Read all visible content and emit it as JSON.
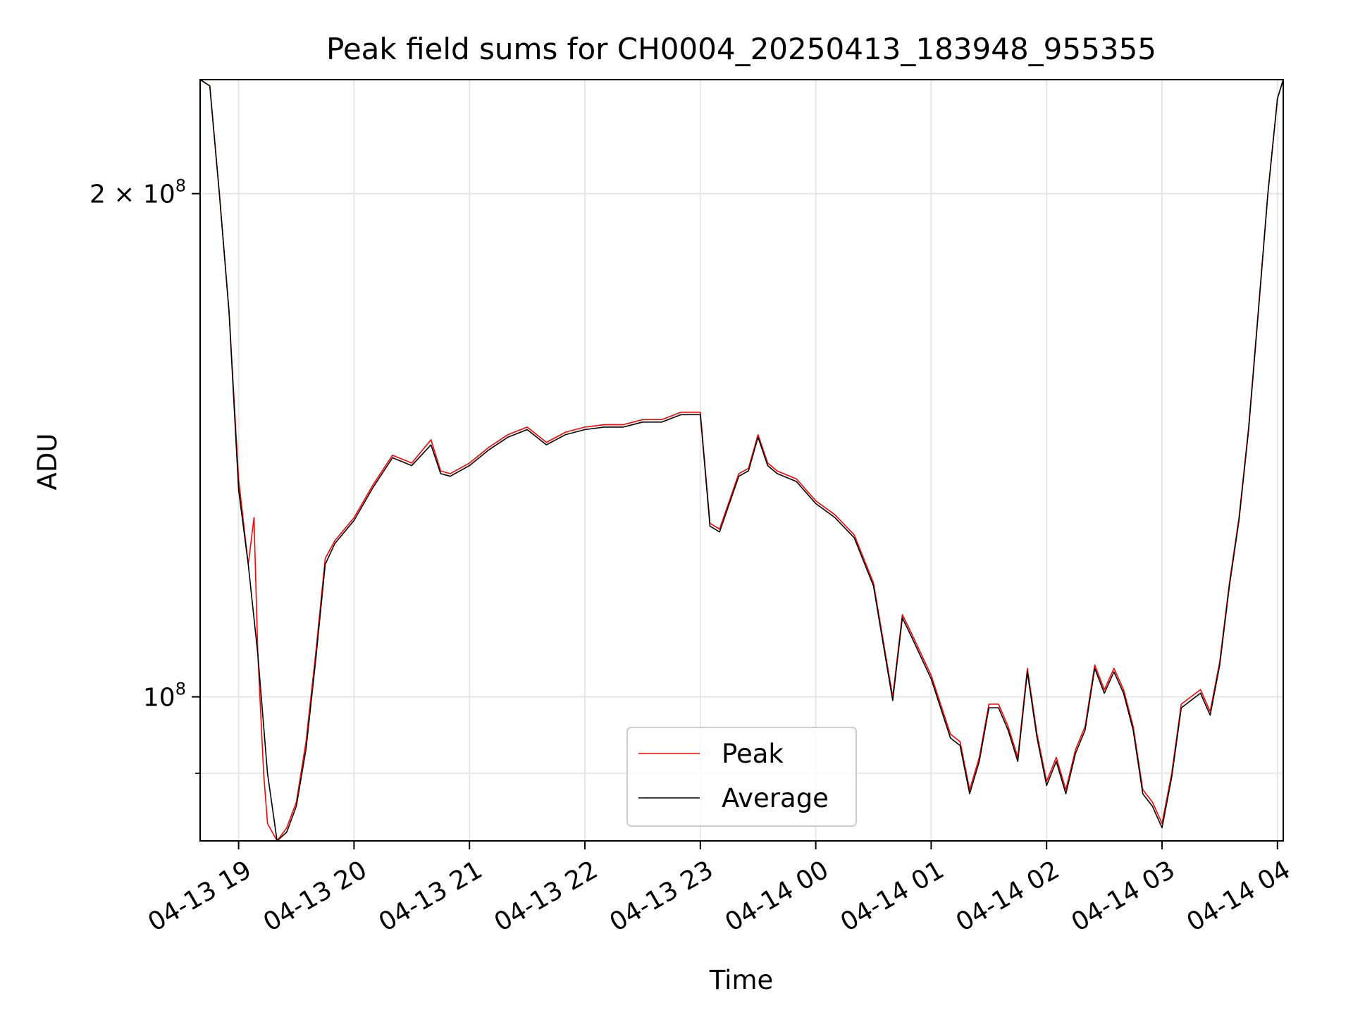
{
  "chart_data": {
    "type": "line",
    "title": "Peak field sums for CH0004_20250413_183948_955355",
    "xlabel": "Time",
    "ylabel": "ADU",
    "yscale": "log",
    "xlim": [
      "2025-04-13 18:40",
      "2025-04-14 04:03"
    ],
    "ylim": [
      82000000,
      234000000
    ],
    "x_ticks": [
      "04-13 19",
      "04-13 20",
      "04-13 21",
      "04-13 22",
      "04-13 23",
      "04-14 00",
      "04-14 01",
      "04-14 02",
      "04-14 03",
      "04-14 04"
    ],
    "y_tick_labels": [
      {
        "value": 200000000,
        "label": "2 × 10",
        "sup": "8"
      },
      {
        "value": 100000000,
        "label": "10",
        "sup": "8"
      }
    ],
    "y_minor_ticks": [
      90000000
    ],
    "grid": true,
    "legend": {
      "position": "bottom-center",
      "entries": [
        "Peak",
        "Average"
      ]
    },
    "series": [
      {
        "name": "Peak",
        "color": "#ff0000",
        "x": [
          "2025-04-13 18:40",
          "2025-04-13 18:45",
          "2025-04-13 18:50",
          "2025-04-13 18:55",
          "2025-04-13 19:00",
          "2025-04-13 19:05",
          "2025-04-13 19:08",
          "2025-04-13 19:10",
          "2025-04-13 19:13",
          "2025-04-13 19:15",
          "2025-04-13 19:20",
          "2025-04-13 19:25",
          "2025-04-13 19:30",
          "2025-04-13 19:35",
          "2025-04-13 19:40",
          "2025-04-13 19:45",
          "2025-04-13 19:50",
          "2025-04-13 20:00",
          "2025-04-13 20:10",
          "2025-04-13 20:20",
          "2025-04-13 20:30",
          "2025-04-13 20:40",
          "2025-04-13 20:45",
          "2025-04-13 20:50",
          "2025-04-13 21:00",
          "2025-04-13 21:10",
          "2025-04-13 21:20",
          "2025-04-13 21:30",
          "2025-04-13 21:40",
          "2025-04-13 21:50",
          "2025-04-13 22:00",
          "2025-04-13 22:10",
          "2025-04-13 22:20",
          "2025-04-13 22:30",
          "2025-04-13 22:40",
          "2025-04-13 22:50",
          "2025-04-13 23:00",
          "2025-04-13 23:05",
          "2025-04-13 23:10",
          "2025-04-13 23:20",
          "2025-04-13 23:25",
          "2025-04-13 23:30",
          "2025-04-13 23:35",
          "2025-04-13 23:40",
          "2025-04-13 23:50",
          "2025-04-14 00:00",
          "2025-04-14 00:10",
          "2025-04-14 00:20",
          "2025-04-14 00:30",
          "2025-04-14 00:40",
          "2025-04-14 00:45",
          "2025-04-14 00:50",
          "2025-04-14 01:00",
          "2025-04-14 01:10",
          "2025-04-14 01:15",
          "2025-04-14 01:20",
          "2025-04-14 01:25",
          "2025-04-14 01:30",
          "2025-04-14 01:35",
          "2025-04-14 01:40",
          "2025-04-14 01:45",
          "2025-04-14 01:50",
          "2025-04-14 01:55",
          "2025-04-14 02:00",
          "2025-04-14 02:05",
          "2025-04-14 02:10",
          "2025-04-14 02:15",
          "2025-04-14 02:20",
          "2025-04-14 02:25",
          "2025-04-14 02:30",
          "2025-04-14 02:35",
          "2025-04-14 02:40",
          "2025-04-14 02:45",
          "2025-04-14 02:50",
          "2025-04-14 02:55",
          "2025-04-14 03:00",
          "2025-04-14 03:05",
          "2025-04-14 03:10",
          "2025-04-14 03:15",
          "2025-04-14 03:20",
          "2025-04-14 03:25",
          "2025-04-14 03:30",
          "2025-04-14 03:35",
          "2025-04-14 03:40",
          "2025-04-14 03:45",
          "2025-04-14 03:50",
          "2025-04-14 03:55",
          "2025-04-14 04:00",
          "2025-04-14 04:03"
        ],
        "y": [
          234000000,
          232000000,
          200000000,
          170000000,
          135000000,
          120000000,
          128000000,
          106000000,
          90000000,
          84000000,
          82000000,
          83500000,
          86500000,
          94000000,
          106000000,
          121000000,
          124000000,
          128000000,
          134000000,
          139500000,
          138000000,
          142500000,
          136500000,
          136000000,
          138000000,
          141000000,
          143500000,
          145000000,
          142000000,
          144000000,
          145000000,
          145500000,
          145500000,
          146500000,
          146500000,
          148000000,
          148000000,
          127000000,
          126000000,
          136000000,
          137000000,
          143500000,
          138000000,
          136500000,
          135000000,
          131000000,
          128500000,
          125000000,
          117000000,
          100000000,
          112000000,
          109000000,
          103000000,
          95000000,
          94000000,
          88000000,
          92000000,
          99000000,
          99000000,
          96000000,
          92000000,
          104000000,
          95000000,
          89000000,
          92000000,
          88000000,
          93000000,
          96000000,
          104500000,
          101000000,
          104000000,
          101000000,
          96000000,
          88000000,
          86500000,
          84000000,
          90000000,
          99000000,
          100000000,
          101000000,
          98000000,
          105000000,
          117000000,
          128000000,
          145000000,
          170000000,
          200000000,
          228000000,
          234000000
        ]
      },
      {
        "name": "Average",
        "color": "#000000",
        "x": [
          "2025-04-13 18:40",
          "2025-04-13 18:45",
          "2025-04-13 18:50",
          "2025-04-13 18:55",
          "2025-04-13 19:00",
          "2025-04-13 19:05",
          "2025-04-13 19:10",
          "2025-04-13 19:15",
          "2025-04-13 19:20",
          "2025-04-13 19:25",
          "2025-04-13 19:30",
          "2025-04-13 19:35",
          "2025-04-13 19:40",
          "2025-04-13 19:45",
          "2025-04-13 19:50",
          "2025-04-13 20:00",
          "2025-04-13 20:10",
          "2025-04-13 20:20",
          "2025-04-13 20:30",
          "2025-04-13 20:40",
          "2025-04-13 20:45",
          "2025-04-13 20:50",
          "2025-04-13 21:00",
          "2025-04-13 21:10",
          "2025-04-13 21:20",
          "2025-04-13 21:30",
          "2025-04-13 21:40",
          "2025-04-13 21:50",
          "2025-04-13 22:00",
          "2025-04-13 22:10",
          "2025-04-13 22:20",
          "2025-04-13 22:30",
          "2025-04-13 22:40",
          "2025-04-13 22:50",
          "2025-04-13 23:00",
          "2025-04-13 23:05",
          "2025-04-13 23:10",
          "2025-04-13 23:20",
          "2025-04-13 23:25",
          "2025-04-13 23:30",
          "2025-04-13 23:35",
          "2025-04-13 23:40",
          "2025-04-13 23:50",
          "2025-04-14 00:00",
          "2025-04-14 00:10",
          "2025-04-14 00:20",
          "2025-04-14 00:30",
          "2025-04-14 00:40",
          "2025-04-14 00:45",
          "2025-04-14 00:50",
          "2025-04-14 01:00",
          "2025-04-14 01:10",
          "2025-04-14 01:15",
          "2025-04-14 01:20",
          "2025-04-14 01:25",
          "2025-04-14 01:30",
          "2025-04-14 01:35",
          "2025-04-14 01:40",
          "2025-04-14 01:45",
          "2025-04-14 01:50",
          "2025-04-14 01:55",
          "2025-04-14 02:00",
          "2025-04-14 02:05",
          "2025-04-14 02:10",
          "2025-04-14 02:15",
          "2025-04-14 02:20",
          "2025-04-14 02:25",
          "2025-04-14 02:30",
          "2025-04-14 02:35",
          "2025-04-14 02:40",
          "2025-04-14 02:45",
          "2025-04-14 02:50",
          "2025-04-14 02:55",
          "2025-04-14 03:00",
          "2025-04-14 03:05",
          "2025-04-14 03:10",
          "2025-04-14 03:15",
          "2025-04-14 03:20",
          "2025-04-14 03:25",
          "2025-04-14 03:30",
          "2025-04-14 03:35",
          "2025-04-14 03:40",
          "2025-04-14 03:45",
          "2025-04-14 03:50",
          "2025-04-14 03:55",
          "2025-04-14 04:00",
          "2025-04-14 04:03"
        ],
        "y": [
          234000000,
          232000000,
          200000000,
          170000000,
          133000000,
          120000000,
          106000000,
          90000000,
          82000000,
          83000000,
          86000000,
          93000000,
          105000000,
          120000000,
          123500000,
          127500000,
          133500000,
          139000000,
          137500000,
          141500000,
          136000000,
          135500000,
          137500000,
          140500000,
          143000000,
          144500000,
          141500000,
          143500000,
          144500000,
          145000000,
          145000000,
          146000000,
          146000000,
          147500000,
          147500000,
          126500000,
          125500000,
          135500000,
          136500000,
          143000000,
          137500000,
          136000000,
          134500000,
          130500000,
          128000000,
          124500000,
          116500000,
          99500000,
          111500000,
          108500000,
          102500000,
          94500000,
          93500000,
          87500000,
          91500000,
          98500000,
          98500000,
          95500000,
          91500000,
          103500000,
          94500000,
          88500000,
          91500000,
          87500000,
          92500000,
          95500000,
          104000000,
          100500000,
          103500000,
          100500000,
          95500000,
          87500000,
          86000000,
          83500000,
          89500000,
          98500000,
          99500000,
          100500000,
          97500000,
          104500000,
          116500000,
          127500000,
          144500000,
          169500000,
          200000000,
          228000000,
          234000000
        ]
      }
    ]
  }
}
